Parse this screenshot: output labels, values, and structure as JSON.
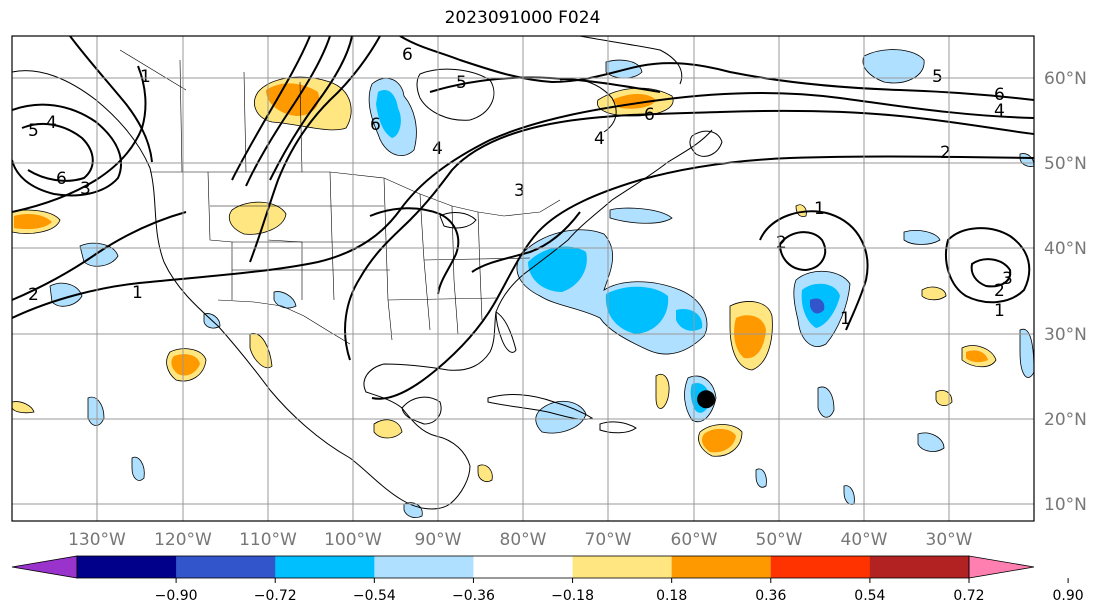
{
  "title": "2023091000 F024",
  "map": {
    "projection": "equirectangular",
    "lon_range": [
      -145,
      -25
    ],
    "lat_range": [
      8,
      65
    ],
    "latitude_labels": [
      "60°N",
      "50°N",
      "40°N",
      "30°N",
      "20°N",
      "10°N"
    ],
    "longitude_labels": [
      "130°W",
      "120°W",
      "110°W",
      "100°W",
      "90°W",
      "80°W",
      "70°W",
      "60°W",
      "50°W",
      "40°W",
      "30°W"
    ],
    "grid": true,
    "storm_marker": {
      "lon": -63.5,
      "lat": 22.3,
      "color": "#000000"
    },
    "contour_labels": [
      "1",
      "2",
      "3",
      "4",
      "5",
      "6"
    ]
  },
  "colorbar": {
    "ticks": [
      "−0.90",
      "−0.72",
      "−0.54",
      "−0.36",
      "−0.18",
      "0.18",
      "0.36",
      "0.54",
      "0.72",
      "0.90"
    ],
    "colors": [
      "#9933cc",
      "#00008b",
      "#3355cc",
      "#00bfff",
      "#b0e0ff",
      "#ffffff",
      "#ffe680",
      "#ff9900",
      "#ff3300",
      "#b22222",
      "#ff80b0"
    ]
  }
}
